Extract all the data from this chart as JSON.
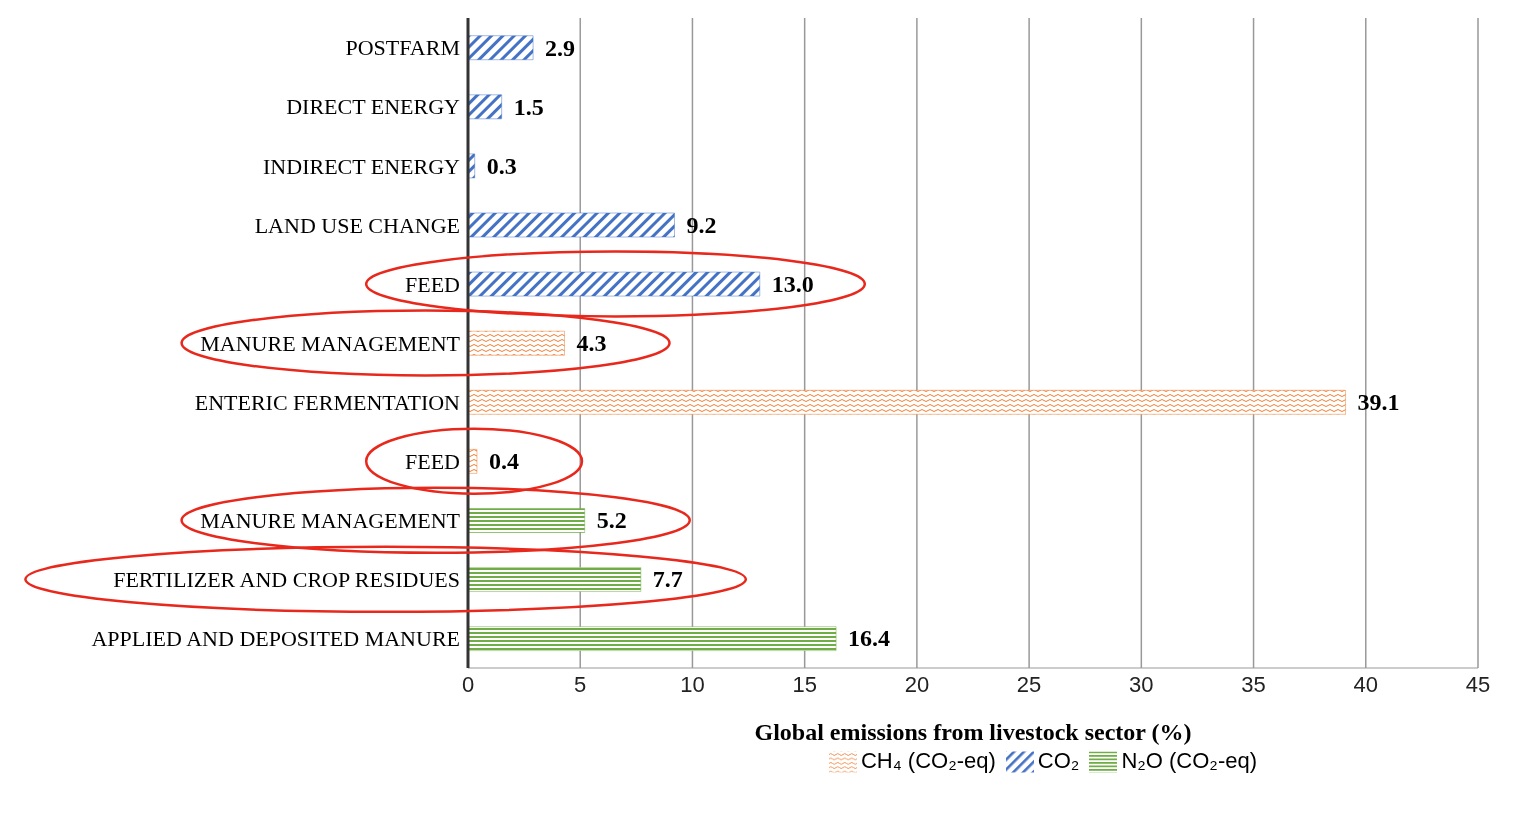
{
  "chart_data": {
    "type": "bar",
    "orientation": "horizontal",
    "stacked": true,
    "xlabel": "Global emissions from livestock sector (%)",
    "categories": [
      "POSTFARM",
      "DIRECT ENERGY",
      "INDIRECT ENERGY",
      "LAND USE CHANGE",
      "FEED",
      "MANURE MANAGEMENT",
      "ENTERIC FERMENTATION",
      "FEED",
      "MANURE MANAGEMENT",
      "FERTILIZER AND CROP RESIDUES",
      "APPLIED AND DEPOSITED MANURE"
    ],
    "series": [
      {
        "name": "CO₂",
        "color": "#4472c4",
        "values": [
          2.9,
          1.5,
          0.3,
          9.2,
          13.0,
          null,
          null,
          null,
          null,
          null,
          null
        ],
        "value_labels": [
          "2.9",
          "1.5",
          "0.3",
          "9.2",
          "13.0",
          null,
          null,
          null,
          null,
          null,
          null
        ]
      },
      {
        "name": "CH₄  (CO₂-eq)",
        "color": "#ed7d31",
        "values": [
          null,
          null,
          null,
          null,
          null,
          4.3,
          39.1,
          0.4,
          null,
          null,
          null
        ],
        "value_labels": [
          null,
          null,
          null,
          null,
          null,
          "4.3",
          "39.1",
          "0.4",
          null,
          null,
          null
        ]
      },
      {
        "name": "N₂O (CO₂-eq)",
        "color": "#70ad47",
        "values": [
          null,
          null,
          null,
          null,
          null,
          null,
          null,
          null,
          5.2,
          7.7,
          16.4
        ],
        "value_labels": [
          null,
          null,
          null,
          null,
          null,
          null,
          null,
          null,
          "5.2",
          "7.7",
          "16.4"
        ]
      }
    ],
    "xlim": [
      0,
      45
    ],
    "xticks": [
      0,
      5,
      10,
      15,
      20,
      25,
      30,
      35,
      40,
      45
    ],
    "grid": "x",
    "legend": "bottom"
  }
}
